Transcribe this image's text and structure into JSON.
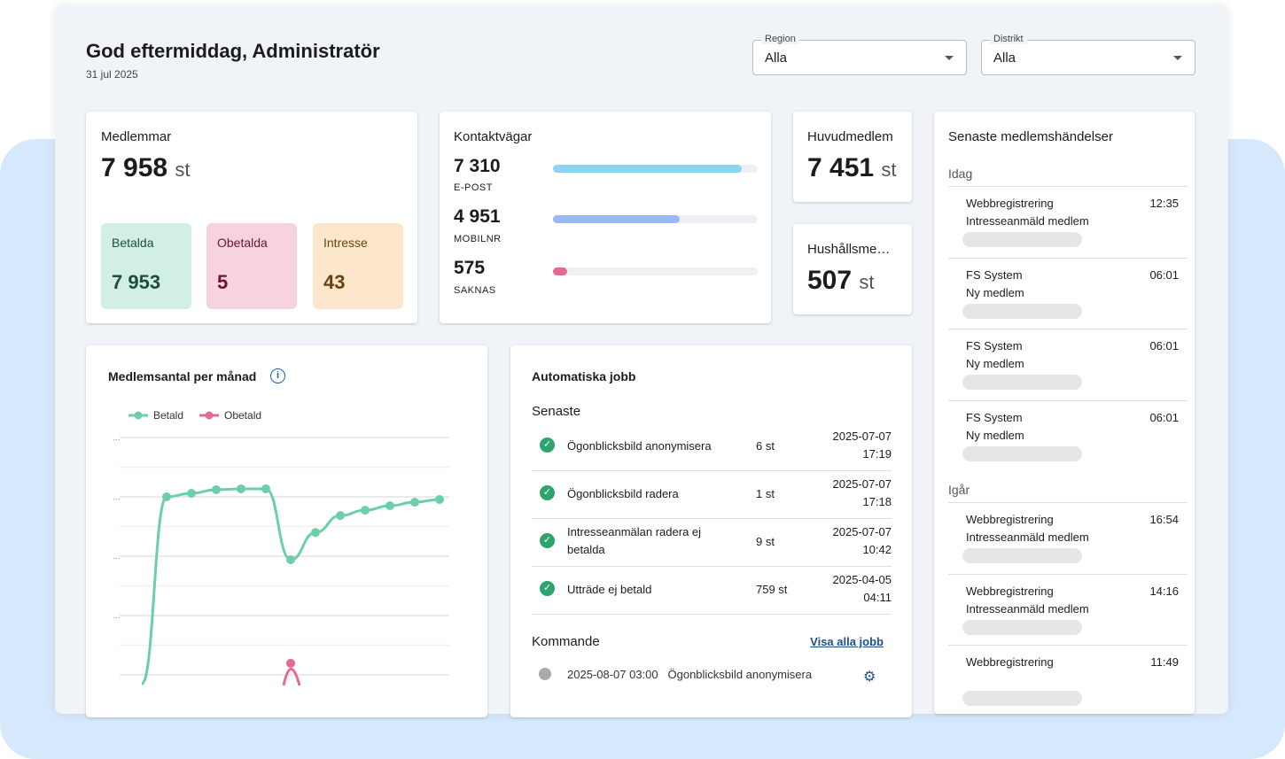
{
  "header": {
    "greeting": "God eftermiddag, Administratör",
    "date": "31 jul 2025"
  },
  "filters": [
    {
      "label": "Region",
      "value": "Alla"
    },
    {
      "label": "Distrikt",
      "value": "Alla"
    }
  ],
  "members": {
    "title": "Medlemmar",
    "value": "7 958",
    "unit": "st",
    "tiles": [
      {
        "label": "Betalda",
        "value": "7 953",
        "bg": "#d2efe4",
        "fg": "#1e4d3a"
      },
      {
        "label": "Obetalda",
        "value": "5",
        "bg": "#f6d3de",
        "fg": "#6a1530"
      },
      {
        "label": "Intresse",
        "value": "43",
        "bg": "#fde7cc",
        "fg": "#6a4210"
      }
    ]
  },
  "contacts": {
    "title": "Kontaktvägar",
    "items": [
      {
        "value": "7 310",
        "label": "E-POST",
        "fraction": 0.92,
        "color": "#8fd3f4"
      },
      {
        "value": "4 951",
        "label": "MOBILNR",
        "fraction": 0.62,
        "color": "#9ab8f5"
      },
      {
        "value": "575",
        "label": "SAKNAS",
        "fraction": 0.07,
        "color": "#e36b8f"
      }
    ]
  },
  "head_member": {
    "title": "Huvudmedlem",
    "value": "7 451",
    "unit": "st"
  },
  "household": {
    "title": "Hushållsme…",
    "value": "507",
    "unit": "st"
  },
  "events": {
    "title": "Senaste medlemshändelser",
    "groups": [
      {
        "label": "Idag",
        "items": [
          {
            "source": "Webbregistrering",
            "type": "Intresseanmäld medlem",
            "time": "12:35"
          },
          {
            "source": "FS System",
            "type": "Ny medlem",
            "time": "06:01"
          },
          {
            "source": "FS System",
            "type": "Ny medlem",
            "time": "06:01"
          },
          {
            "source": "FS System",
            "type": "Ny medlem",
            "time": "06:01"
          }
        ]
      },
      {
        "label": "Igår",
        "items": [
          {
            "source": "Webbregistrering",
            "type": "Intresseanmäld medlem",
            "time": "16:54"
          },
          {
            "source": "Webbregistrering",
            "type": "Intresseanmäld medlem",
            "time": "14:16"
          },
          {
            "source": "Webbregistrering",
            "type": "",
            "time": "11:49"
          }
        ]
      }
    ]
  },
  "chart": {
    "title": "Medlemsantal per månad",
    "info_icon": "info-circle-icon"
  },
  "chart_data": {
    "type": "line",
    "title": "Medlemsantal per månad",
    "ytick_labels": [
      "…",
      "…",
      "…",
      "…"
    ],
    "grid": true,
    "legend": "top-left",
    "series": [
      {
        "name": "Betald",
        "color": "#6ccfa8",
        "values": [
          -0.3,
          6.0,
          6.12,
          6.24,
          6.27,
          6.27,
          3.88,
          4.8,
          5.37,
          5.55,
          5.7,
          5.82,
          5.91
        ]
      },
      {
        "name": "Obetald",
        "color": "#e36b8f",
        "values": [
          null,
          null,
          null,
          null,
          null,
          null,
          0.39,
          null,
          null,
          null,
          null,
          null,
          null
        ]
      }
    ]
  },
  "jobs": {
    "title": "Automatiska jobb",
    "recent_label": "Senaste",
    "recent": [
      {
        "name": "Ögonblicksbild anonymisera",
        "count": "6 st",
        "date": "2025-07-07",
        "time": "17:19"
      },
      {
        "name": "Ögonblicksbild radera",
        "count": "1 st",
        "date": "2025-07-07",
        "time": "17:18"
      },
      {
        "name": "Intresseanmälan radera ej betalda",
        "count": "9 st",
        "date": "2025-07-07",
        "time": "10:42"
      },
      {
        "name": "Utträde ej betald",
        "count": "759 st",
        "date": "2025-04-05",
        "time": "04:11"
      }
    ],
    "upcoming_label": "Kommande",
    "view_all": "Visa alla jobb",
    "upcoming": [
      {
        "datetime": "2025-08-07 03:00",
        "name": "Ögonblicksbild anonymisera"
      }
    ]
  }
}
